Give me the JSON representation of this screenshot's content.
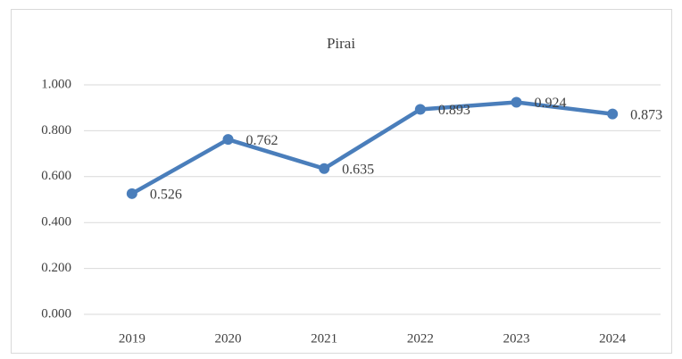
{
  "chart_data": {
    "type": "line",
    "title": "Pirai",
    "categories": [
      "2019",
      "2020",
      "2021",
      "2022",
      "2023",
      "2024"
    ],
    "values": [
      0.526,
      0.762,
      0.635,
      0.893,
      0.924,
      0.873
    ],
    "color": "#4a7ebb",
    "ylim": [
      0,
      1
    ],
    "yticks": [
      {
        "value": 0,
        "label": "0.000"
      },
      {
        "value": 0.2,
        "label": "0.200"
      },
      {
        "value": 0.4,
        "label": "0.400"
      },
      {
        "value": 0.6,
        "label": "0.600"
      },
      {
        "value": 0.8,
        "label": "0.800"
      },
      {
        "value": 1,
        "label": "1.000"
      }
    ],
    "grid": true
  }
}
